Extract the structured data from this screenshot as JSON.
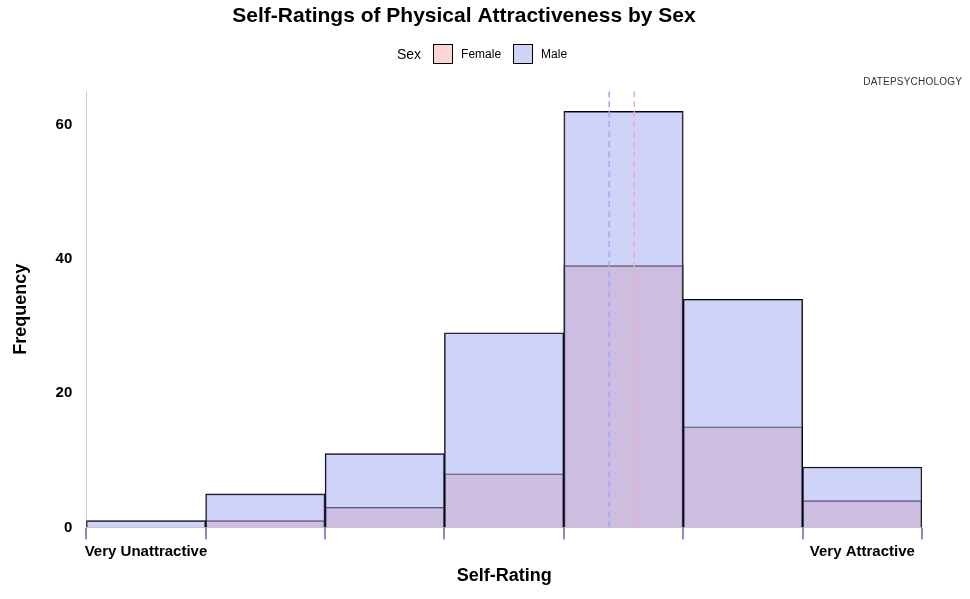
{
  "chart_data": {
    "type": "histogram",
    "title": "Self-Ratings of Physical Attractiveness by Sex",
    "x_label": "Self-Rating",
    "y_label": "Frequency",
    "legend_title": "Sex",
    "watermark": "DATEPSYCHOLOGY",
    "bins": [
      0.5,
      1.5,
      2.5,
      3.5,
      4.5,
      5.5,
      6.5,
      7.5
    ],
    "series": [
      {
        "name": "Female",
        "color": "#f8a9a9",
        "values": [
          0,
          1,
          3,
          8,
          39,
          15,
          4
        ],
        "mean": 5.09
      },
      {
        "name": "Male",
        "color": "#a0a8f0",
        "values": [
          1,
          5,
          11,
          29,
          62,
          34,
          9
        ],
        "mean": 4.88
      }
    ],
    "xlim": [
      0.5,
      7.5
    ],
    "xticks": [
      {
        "value": 1,
        "label": "Very Unattractive"
      },
      {
        "value": 2,
        "label": null
      },
      {
        "value": 3,
        "label": null
      },
      {
        "value": 4,
        "label": null
      },
      {
        "value": 5,
        "label": null
      },
      {
        "value": 6,
        "label": null
      },
      {
        "value": 7,
        "label": "Very Attractive"
      }
    ],
    "ylim": [
      0,
      65
    ],
    "yticks": [
      0,
      20,
      40,
      60
    ],
    "grid": false,
    "legend": "top"
  }
}
